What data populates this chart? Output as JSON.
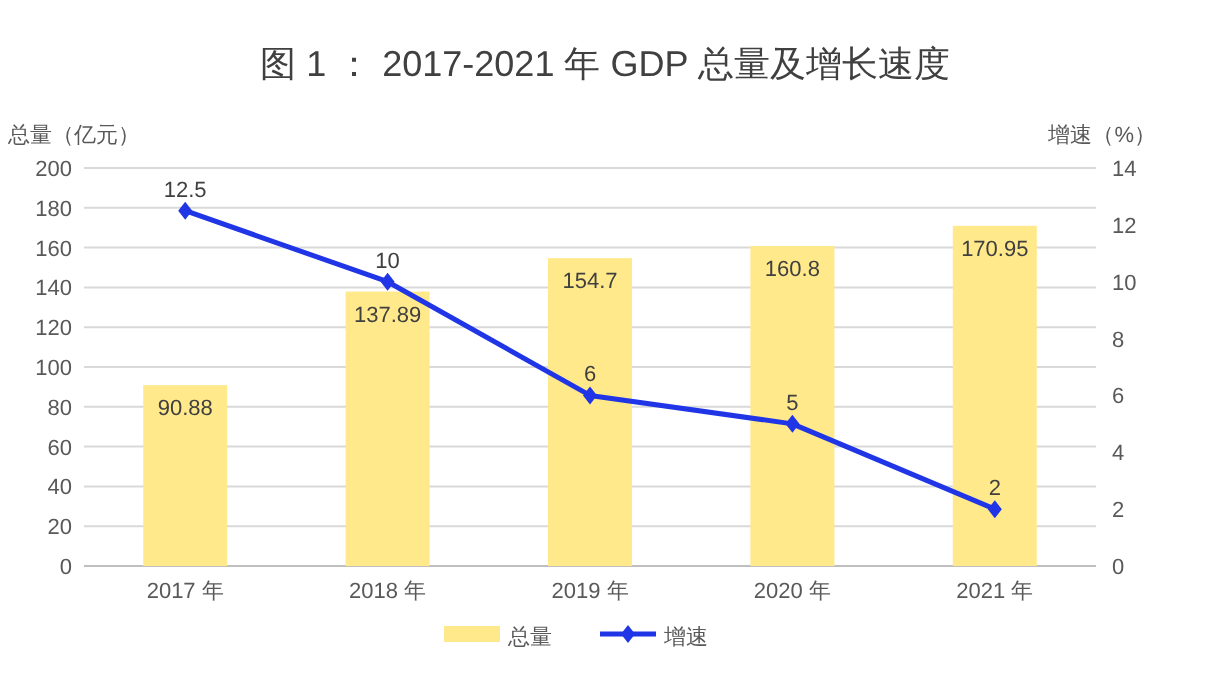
{
  "chart_data": {
    "type": "bar",
    "title": "图 1 ： 2017-2021 年 GDP 总量及增长速度",
    "ylabel": "总量（亿元）",
    "y2label": "增速（%）",
    "categories": [
      "2017 年",
      "2018 年",
      "2019 年",
      "2020 年",
      "2021 年"
    ],
    "series": [
      {
        "name": "总量",
        "color": "#ffe98a",
        "values": [
          90.88,
          137.89,
          154.7,
          160.8,
          170.95
        ]
      },
      {
        "name": "增速",
        "type": "line",
        "axis": "y2",
        "color": "#1f35e6",
        "values": [
          12.5,
          10,
          6,
          5,
          2
        ]
      }
    ],
    "ylim": [
      0,
      200
    ],
    "yticks": [
      0,
      20,
      40,
      60,
      80,
      100,
      120,
      140,
      160,
      180,
      200
    ],
    "y2lim": [
      0,
      14
    ],
    "y2ticks": [
      0,
      2,
      4,
      6,
      8,
      10,
      12,
      14
    ],
    "grid": "y",
    "legend": "bottom",
    "marker": "diamond",
    "line_style": "solid",
    "data_labels": true
  }
}
